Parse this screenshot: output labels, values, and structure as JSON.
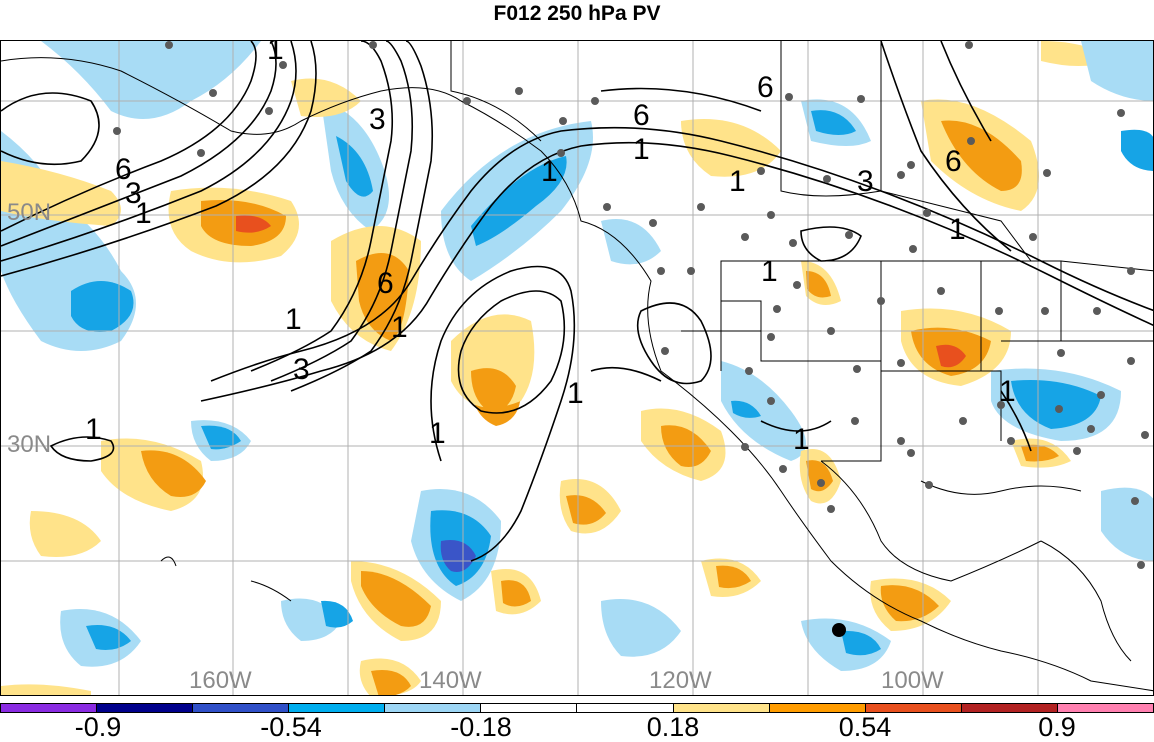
{
  "title": "F012 250 hPa PV",
  "lat_labels": [
    {
      "text": "50N",
      "id": "lat-50n"
    },
    {
      "text": "30N",
      "id": "lat-30n"
    }
  ],
  "lon_labels": [
    {
      "text": "160W",
      "id": "lon-160w"
    },
    {
      "text": "140W",
      "id": "lon-140w"
    },
    {
      "text": "120W",
      "id": "lon-120w"
    },
    {
      "text": "100W",
      "id": "lon-100w"
    }
  ],
  "contour_labels": [
    "1",
    "3",
    "6"
  ],
  "colorbar": {
    "colors": [
      "#8a2be2",
      "#00008b",
      "#3050c8",
      "#00aeef",
      "#9dd6f5",
      "#ffffff",
      "#ffffff",
      "#ffe38a",
      "#ff9c00",
      "#e8501e",
      "#b22222",
      "#ff80b0"
    ],
    "tick_labels": [
      "-0.9",
      "-0.54",
      "-0.18",
      "0.18",
      "0.54",
      "0.9"
    ]
  },
  "map_colors": {
    "light_blue": "#a8dcf5",
    "mid_blue": "#16a4e6",
    "dark_blue": "#3a55c8",
    "light_yellow": "#ffe38a",
    "orange": "#f39c12",
    "red_orange": "#e8501e",
    "contour": "#000000",
    "station": "#5a5a5a",
    "grid": "#b0b0b0"
  }
}
